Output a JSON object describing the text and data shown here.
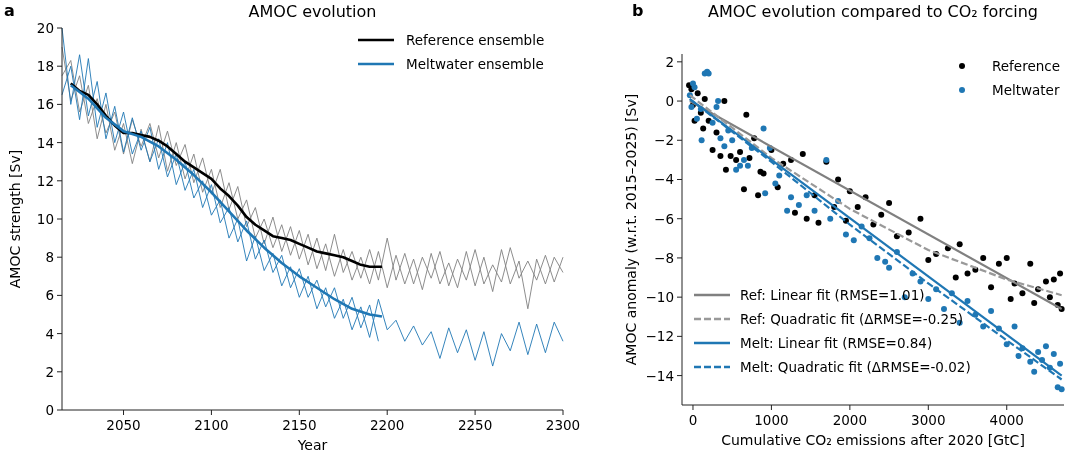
{
  "chart_data": [
    {
      "type": "line",
      "title": "AMOC evolution",
      "xlabel": "Year",
      "ylabel": "AMOC strength [Sv]",
      "annotations": [
        "a"
      ],
      "xlim": [
        2015,
        2300
      ],
      "xticks": [
        2050,
        2100,
        2150,
        2200,
        2250,
        2300
      ],
      "ylim": [
        0,
        20
      ],
      "yticks": [
        0,
        2,
        4,
        6,
        8,
        10,
        12,
        14,
        16,
        18,
        20
      ],
      "grid": false,
      "legend": "top right",
      "x": [
        2015,
        2020,
        2025,
        2030,
        2035,
        2040,
        2045,
        2050,
        2055,
        2060,
        2065,
        2070,
        2075,
        2080,
        2085,
        2090,
        2095,
        2100,
        2105,
        2110,
        2115,
        2120,
        2125,
        2130,
        2135,
        2140,
        2145,
        2150,
        2155,
        2160,
        2165,
        2170,
        2175,
        2180,
        2185,
        2190,
        2195,
        2200,
        2205,
        2210,
        2215,
        2220,
        2225,
        2230,
        2235,
        2240,
        2245,
        2250,
        2255,
        2260,
        2265,
        2270,
        2275,
        2280,
        2285,
        2290,
        2295,
        2300
      ],
      "series": [
        {
          "color": "#808080",
          "values": [
            19.0,
            16.2,
            17.5,
            15.0,
            16.3,
            14.5,
            15.6,
            13.4,
            15.2,
            13.8,
            15.0,
            13.2,
            14.6,
            12.8,
            13.9,
            11.9,
            13.2,
            11.3,
            12.6,
            10.5,
            11.7,
            9.6,
            10.6,
            8.7,
            10.1,
            8.3,
            9.6,
            7.9,
            9.2,
            7.4,
            8.7,
            7.0,
            8.4,
            6.8,
            8.0,
            6.6,
            8.3,
            6.4,
            8.1,
            6.6,
            7.9,
            6.3,
            8.2,
            6.6,
            7.7,
            6.4,
            8.3,
            6.5,
            8.0,
            6.2,
            8.4,
            6.6,
            7.8,
            5.3,
            7.9,
            6.6,
            8.0,
            7.2
          ]
        },
        {
          "color": "#808080",
          "values": [
            17.5,
            18.3,
            15.6,
            17.0,
            14.2,
            16.0,
            13.6,
            15.0,
            12.9,
            14.7,
            13.0,
            14.9,
            12.5,
            14.0,
            12.1,
            13.4,
            11.4,
            12.6,
            10.6,
            11.9,
            10.0,
            11.0,
            9.0,
            10.0,
            8.5,
            9.7,
            8.1,
            9.4,
            7.6,
            9.0,
            7.3,
            9.2,
            7.2,
            8.3,
            6.9,
            8.4,
            6.8,
            9.0,
            6.8,
            8.2,
            6.6,
            8.0,
            6.9,
            8.3,
            6.5,
            7.9,
            6.8,
            8.4,
            6.6,
            7.6,
            6.7,
            8.5,
            6.9,
            7.8,
            6.8,
            8.1,
            6.7,
            8.0
          ]
        },
        {
          "color": "#1f77b4",
          "values": [
            20.0,
            16.0,
            18.6,
            15.4,
            17.2,
            14.2,
            15.9,
            13.5,
            15.3,
            13.6,
            14.8,
            12.6,
            14.0,
            11.8,
            13.0,
            11.1,
            12.0,
            10.2,
            11.0,
            9.0,
            10.0,
            7.8,
            9.1,
            7.3,
            8.2,
            6.5,
            7.5,
            5.9,
            7.0,
            5.3,
            6.4,
            4.8,
            5.8,
            4.2,
            5.4,
            3.8,
            5.8,
            4.2,
            4.7,
            3.6,
            4.4,
            3.4,
            4.1,
            2.7,
            4.3,
            3.0,
            4.2,
            2.6,
            4.1,
            2.3,
            4.0,
            3.1,
            4.6,
            2.9,
            4.5,
            3.0,
            4.6,
            3.6
          ]
        },
        {
          "color": "#1f77b4",
          "values": [
            16.5,
            18.0,
            15.2,
            18.4,
            14.8,
            16.6,
            14.0,
            15.6,
            13.4,
            14.6,
            13.0,
            14.2,
            12.2,
            13.4,
            11.5,
            12.6,
            10.6,
            11.8,
            9.8,
            10.6,
            8.8,
            9.9,
            7.9,
            8.9,
            7.2,
            8.1,
            6.4,
            7.4,
            5.9,
            6.8,
            5.4,
            6.4,
            4.8,
            5.9,
            4.3,
            5.5,
            3.6,
            null,
            null,
            null,
            null,
            null,
            null,
            null,
            null,
            null,
            null,
            null,
            null,
            null,
            null,
            null,
            null,
            null,
            null,
            null,
            null,
            null
          ]
        },
        {
          "name": "Reference ensemble",
          "color": "#000000",
          "x": [
            2020,
            2025,
            2030,
            2035,
            2040,
            2045,
            2050,
            2055,
            2060,
            2065,
            2070,
            2075,
            2080,
            2085,
            2090,
            2095,
            2100,
            2105,
            2110,
            2115,
            2120,
            2125,
            2130,
            2135,
            2140,
            2145,
            2150,
            2155,
            2160,
            2165,
            2170,
            2175,
            2180,
            2185,
            2190,
            2197
          ],
          "values": [
            17.1,
            16.7,
            16.5,
            16.0,
            15.4,
            14.9,
            14.5,
            14.5,
            14.4,
            14.3,
            14.1,
            13.8,
            13.4,
            13.0,
            12.7,
            12.4,
            12.1,
            11.6,
            11.2,
            10.7,
            10.1,
            9.7,
            9.4,
            9.1,
            9.0,
            8.9,
            8.7,
            8.5,
            8.3,
            8.2,
            8.1,
            8.0,
            7.8,
            7.6,
            7.5,
            7.5
          ]
        },
        {
          "name": "Meltwater ensemble",
          "color": "#1f77b4",
          "x": [
            2020,
            2030,
            2040,
            2050,
            2060,
            2070,
            2080,
            2090,
            2100,
            2110,
            2120,
            2130,
            2140,
            2150,
            2160,
            2170,
            2180,
            2190,
            2197
          ],
          "values": [
            17.0,
            16.3,
            15.3,
            14.6,
            14.3,
            13.8,
            13.1,
            12.3,
            11.4,
            10.4,
            9.4,
            8.5,
            7.7,
            7.0,
            6.4,
            5.8,
            5.3,
            5.0,
            4.9
          ]
        }
      ]
    },
    {
      "type": "scatter",
      "title": "AMOC evolution compared to CO₂ forcing",
      "xlabel": "Cumulative CO₂ emissions after 2020 [GtC]",
      "ylabel": "AMOC anomaly (w.r.t. 2015–2025) [Sv]",
      "annotations": [
        "b"
      ],
      "xlim": [
        -140,
        4730
      ],
      "xticks": [
        0,
        1000,
        2000,
        3000,
        4000
      ],
      "ylim": [
        -15.5,
        2.4
      ],
      "yticks": [
        {
          "value": -14,
          "label": "−14"
        },
        {
          "value": -12,
          "label": "−12"
        },
        {
          "value": -10,
          "label": "−10"
        },
        {
          "value": -8,
          "label": "−8"
        },
        {
          "value": -6,
          "label": "−6"
        },
        {
          "value": -4,
          "label": "−4"
        },
        {
          "value": -2,
          "label": "−2"
        },
        0,
        2
      ],
      "grid": false,
      "legend": "top right",
      "series": [
        {
          "name": "Reference",
          "color": "#000000",
          "x": [
            -50,
            -20,
            0,
            20,
            60,
            100,
            130,
            150,
            200,
            250,
            300,
            350,
            400,
            420,
            480,
            550,
            600,
            650,
            680,
            720,
            780,
            830,
            860,
            900,
            1000,
            1080,
            1150,
            1250,
            1300,
            1400,
            1450,
            1550,
            1600,
            1700,
            1800,
            1850,
            1950,
            2000,
            2100,
            2200,
            2300,
            2400,
            2500,
            2600,
            2750,
            2900,
            3000,
            3100,
            3250,
            3350,
            3400,
            3500,
            3600,
            3700,
            3800,
            3900,
            4000,
            4050,
            4100,
            4200,
            4300,
            4350,
            4400,
            4500,
            4550,
            4600,
            4650,
            4680,
            4700
          ],
          "values": [
            0.8,
            0.6,
            -0.2,
            -1.0,
            0.4,
            -0.6,
            -1.4,
            0.1,
            -1.0,
            -2.5,
            -1.6,
            -2.8,
            0.0,
            -3.5,
            -2.8,
            -3.0,
            -2.6,
            -4.5,
            -0.7,
            -2.9,
            -1.9,
            -4.8,
            -3.6,
            -3.7,
            -2.5,
            -4.4,
            -3.2,
            -3.0,
            -5.7,
            -2.7,
            -6.0,
            -4.8,
            -6.2,
            -3.1,
            -5.4,
            -4.0,
            -6.1,
            -4.6,
            -5.4,
            -4.9,
            -6.3,
            -5.8,
            -5.2,
            -6.9,
            -6.7,
            -6.0,
            -8.1,
            -7.8,
            -7.5,
            -9.0,
            -7.3,
            -8.8,
            -8.6,
            -8.0,
            -9.5,
            -8.3,
            -8.0,
            -10.1,
            -9.3,
            -9.8,
            -8.3,
            -10.3,
            -9.6,
            -9.2,
            -10.0,
            -9.1,
            -10.4,
            -8.8,
            -10.6
          ]
        },
        {
          "name": "Meltwater",
          "color": "#1f77b4",
          "x": [
            -40,
            -20,
            0,
            20,
            50,
            100,
            110,
            150,
            180,
            200,
            250,
            300,
            320,
            350,
            400,
            450,
            500,
            550,
            600,
            650,
            700,
            750,
            900,
            920,
            980,
            1050,
            1100,
            1200,
            1250,
            1350,
            1450,
            1550,
            1700,
            1750,
            1850,
            1950,
            2050,
            2150,
            2250,
            2350,
            2450,
            2500,
            2600,
            2700,
            2800,
            2900,
            3000,
            3100,
            3200,
            3300,
            3400,
            3500,
            3600,
            3700,
            3800,
            3900,
            4000,
            4100,
            4150,
            4200,
            4300,
            4350,
            4400,
            4450,
            4500,
            4550,
            4600,
            4650,
            4680,
            4700
          ],
          "values": [
            0.3,
            -0.3,
            0.9,
            0.7,
            -0.9,
            -0.4,
            -2.0,
            1.4,
            1.5,
            1.4,
            -1.1,
            -0.3,
            0.0,
            -1.9,
            -2.3,
            -1.5,
            -2.0,
            -3.5,
            -3.3,
            -3.0,
            -3.3,
            -2.4,
            -1.4,
            -4.7,
            -2.4,
            -4.2,
            -3.8,
            -5.6,
            -4.9,
            -5.3,
            -4.8,
            -5.6,
            -3.0,
            -6.0,
            -5.1,
            -6.8,
            -7.1,
            -6.4,
            -7.0,
            -8.0,
            -8.2,
            -8.5,
            -7.7,
            -10.0,
            -8.8,
            -9.2,
            -10.1,
            -9.6,
            -10.6,
            -9.8,
            -11.3,
            -10.2,
            -10.9,
            -11.5,
            -10.7,
            -11.6,
            -12.4,
            -11.5,
            -13.0,
            -12.6,
            -13.3,
            -13.8,
            -12.8,
            -13.2,
            -12.5,
            -13.6,
            -12.9,
            -14.6,
            -13.4,
            -14.7
          ]
        },
        {
          "type": "line",
          "name": "Ref:  Linear fit (RMSE=1.01)",
          "color": "#808080",
          "line_style": "solid",
          "x": [
            -40,
            4700
          ],
          "values": [
            0.0,
            -10.6
          ]
        },
        {
          "type": "line",
          "name": "Ref:  Quadratic fit (ΔRMSE=-0.25)",
          "color": "#999999",
          "line_style": "dashed",
          "x": [
            -40,
            1000,
            2000,
            3000,
            4000,
            4700
          ],
          "values": [
            0.3,
            -2.9,
            -5.5,
            -7.6,
            -9.1,
            -9.9
          ]
        },
        {
          "type": "line",
          "name": "Melt: Linear fit (RMSE=0.84)",
          "color": "#1f77b4",
          "line_style": "solid",
          "x": [
            -40,
            4700
          ],
          "values": [
            0.1,
            -14.0
          ]
        },
        {
          "type": "line",
          "name": "Melt: Quadratic fit (ΔRMSE=-0.02)",
          "color": "#1f77b4",
          "line_style": "dashed",
          "x": [
            -40,
            1000,
            2000,
            3000,
            4000,
            4700
          ],
          "values": [
            0.1,
            -3.1,
            -6.3,
            -9.3,
            -12.2,
            -14.2
          ]
        }
      ]
    }
  ]
}
